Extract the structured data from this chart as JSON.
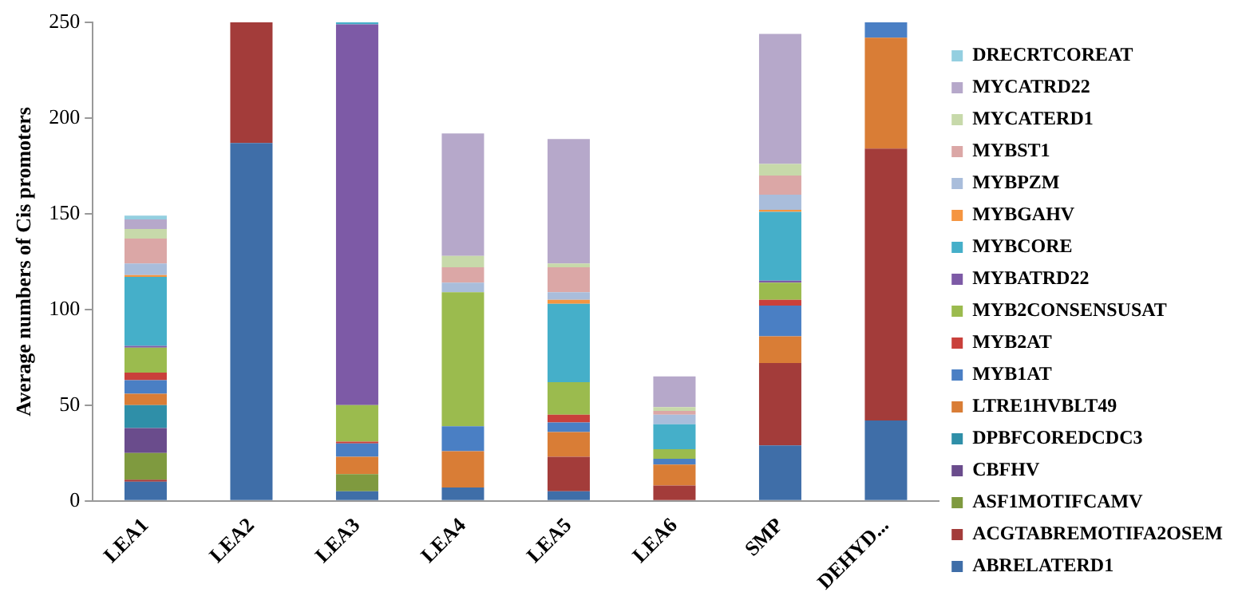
{
  "chart_data": {
    "type": "bar",
    "stacked": true,
    "ylabel": "Average numbers of Cis promoters",
    "categories": [
      "LEA1",
      "LEA2",
      "LEA3",
      "LEA4",
      "LEA5",
      "LEA6",
      "SMP",
      "DEHYD..."
    ],
    "ylim": [
      0,
      250
    ],
    "yticks": [
      0,
      50,
      100,
      150,
      200,
      250
    ],
    "grid": false,
    "legend": "right",
    "series": [
      {
        "name": "ABRELATERD1",
        "color": "#3f6ea8",
        "values": [
          10,
          187,
          5,
          7,
          5,
          0,
          29,
          42
        ]
      },
      {
        "name": "ACGTABREMOTIFA2OSEM",
        "color": "#a33c3a",
        "values": [
          1,
          63,
          0,
          0,
          18,
          8,
          43,
          142
        ]
      },
      {
        "name": "ASF1MOTIFCAMV",
        "color": "#7f9a3f",
        "values": [
          14,
          0,
          9,
          0,
          0,
          0,
          0,
          0
        ]
      },
      {
        "name": "CBFHV",
        "color": "#6a4c8c",
        "values": [
          13,
          0,
          0,
          0,
          0,
          0,
          0,
          0
        ]
      },
      {
        "name": "DPBFCOREDCDC3",
        "color": "#2f8fa8",
        "values": [
          12,
          0,
          0,
          0,
          0,
          0,
          0,
          0
        ]
      },
      {
        "name": "LTRE1HVBLT49",
        "color": "#d97d36",
        "values": [
          6,
          0,
          9,
          19,
          13,
          11,
          14,
          58
        ]
      },
      {
        "name": "MYB1AT",
        "color": "#4a7fc4",
        "values": [
          7,
          0,
          7,
          13,
          5,
          3,
          16,
          8
        ]
      },
      {
        "name": "MYB2AT",
        "color": "#c9403b",
        "values": [
          4,
          0,
          1,
          0,
          4,
          0,
          3,
          0
        ]
      },
      {
        "name": "MYB2CONSENSUSAT",
        "color": "#9bbb4e",
        "values": [
          13,
          0,
          19,
          70,
          17,
          5,
          9,
          0
        ]
      },
      {
        "name": "MYBATRD22",
        "color": "#7d5aa6",
        "values": [
          1,
          0,
          199,
          0,
          0,
          0,
          1,
          0
        ]
      },
      {
        "name": "MYBCORE",
        "color": "#45afc9",
        "values": [
          36,
          0,
          1,
          0,
          41,
          13,
          36,
          0
        ]
      },
      {
        "name": "MYBGAHV",
        "color": "#f59540",
        "values": [
          1,
          0,
          0,
          0,
          2,
          0,
          1,
          0
        ]
      },
      {
        "name": "MYBPZM",
        "color": "#a9bddb",
        "values": [
          6,
          0,
          0,
          5,
          4,
          5,
          8,
          0
        ]
      },
      {
        "name": "MYBST1",
        "color": "#dba7a6",
        "values": [
          13,
          0,
          0,
          8,
          13,
          2,
          10,
          0
        ]
      },
      {
        "name": "MYCATERD1",
        "color": "#c7d9aa",
        "values": [
          5,
          0,
          0,
          6,
          2,
          2,
          6,
          0
        ]
      },
      {
        "name": "MYCATRD22",
        "color": "#b6a8ca",
        "values": [
          5,
          0,
          0,
          64,
          65,
          16,
          68,
          0
        ]
      },
      {
        "name": "DRECRTCOREAT",
        "color": "#94cfe0",
        "values": [
          2,
          0,
          0,
          0,
          0,
          0,
          0,
          0
        ]
      }
    ]
  }
}
